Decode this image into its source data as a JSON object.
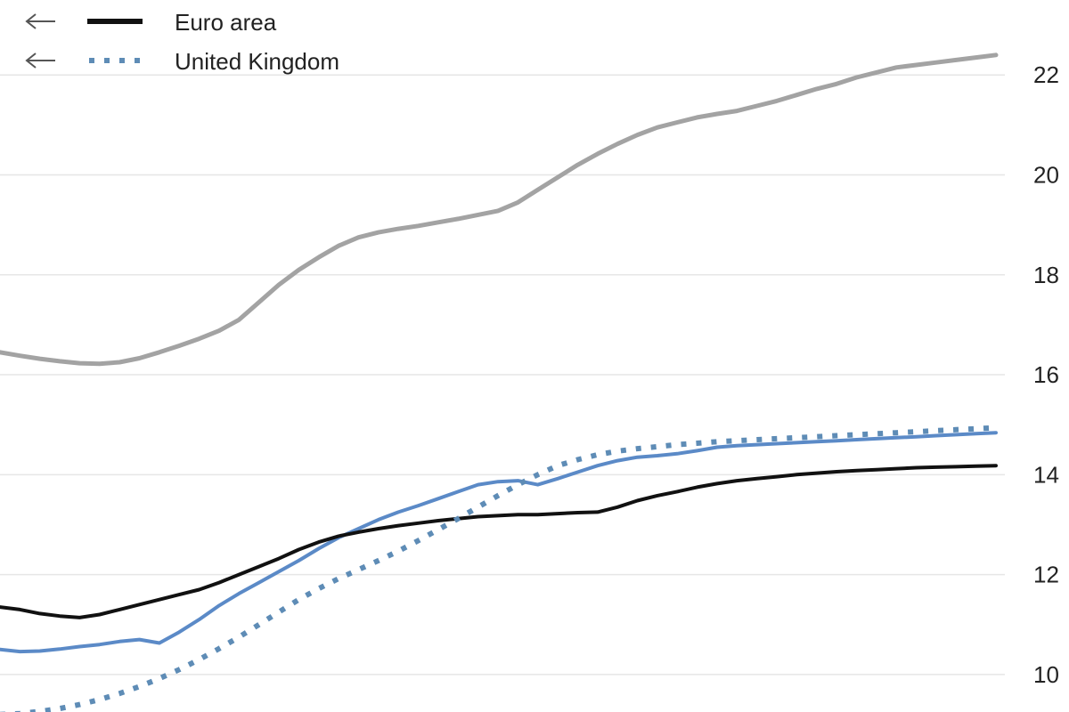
{
  "chart_data": {
    "type": "line",
    "right_axis": {
      "ylim": [
        9.25,
        23.5
      ],
      "ticks": [
        10,
        12,
        14,
        16,
        18,
        20,
        22
      ],
      "tick_labels": [
        "10",
        "12",
        "14",
        "16",
        "18",
        "20",
        "22"
      ]
    },
    "grid": true,
    "legend": {
      "placement": "top-left",
      "entries": [
        {
          "label": "Euro area",
          "series": "euro_area",
          "arrow": "left"
        },
        {
          "label": "United Kingdom",
          "series": "united_kingdom",
          "arrow": "left"
        }
      ]
    },
    "x": [
      0,
      1,
      2,
      3,
      4,
      5,
      6,
      7,
      8,
      9,
      10,
      11,
      12,
      13,
      14,
      15,
      16,
      17,
      18,
      19,
      20,
      21,
      22,
      23,
      24,
      25,
      26,
      27,
      28,
      29,
      30,
      31,
      32,
      33,
      34,
      35,
      36,
      37,
      38,
      39,
      40,
      41,
      42,
      43,
      44,
      45,
      46,
      47,
      48,
      49,
      50
    ],
    "series": [
      {
        "key": "top_gray",
        "color": "#a3a3a3",
        "style": "solid",
        "width": 5,
        "values": [
          16.45,
          16.38,
          16.32,
          16.27,
          16.23,
          16.22,
          16.25,
          16.33,
          16.45,
          16.58,
          16.72,
          16.88,
          17.1,
          17.45,
          17.8,
          18.1,
          18.35,
          18.58,
          18.75,
          18.85,
          18.92,
          18.98,
          19.05,
          19.12,
          19.2,
          19.28,
          19.45,
          19.7,
          19.95,
          20.2,
          20.42,
          20.62,
          20.8,
          20.95,
          21.05,
          21.15,
          21.22,
          21.28,
          21.38,
          21.48,
          21.6,
          21.72,
          21.82,
          21.95,
          22.05,
          22.15,
          22.2,
          22.25,
          22.3,
          22.35,
          22.4
        ]
      },
      {
        "key": "blue_solid",
        "color": "#5b8ac7",
        "style": "solid",
        "width": 4,
        "values": [
          10.5,
          10.46,
          10.47,
          10.51,
          10.56,
          10.6,
          10.66,
          10.7,
          10.63,
          10.85,
          11.1,
          11.38,
          11.62,
          11.84,
          12.06,
          12.28,
          12.52,
          12.74,
          12.92,
          13.1,
          13.25,
          13.38,
          13.52,
          13.66,
          13.8,
          13.86,
          13.88,
          13.8,
          13.92,
          14.05,
          14.18,
          14.28,
          14.35,
          14.38,
          14.42,
          14.48,
          14.55,
          14.58,
          14.6,
          14.62,
          14.64,
          14.66,
          14.68,
          14.7,
          14.72,
          14.74,
          14.76,
          14.78,
          14.8,
          14.82,
          14.84
        ]
      },
      {
        "key": "euro_area",
        "color": "#111111",
        "style": "solid",
        "width": 4,
        "values": [
          11.35,
          11.3,
          11.22,
          11.17,
          11.14,
          11.2,
          11.3,
          11.4,
          11.5,
          11.6,
          11.7,
          11.84,
          12.0,
          12.16,
          12.32,
          12.5,
          12.65,
          12.77,
          12.85,
          12.92,
          12.98,
          13.03,
          13.08,
          13.12,
          13.16,
          13.18,
          13.2,
          13.2,
          13.22,
          13.24,
          13.25,
          13.35,
          13.48,
          13.58,
          13.66,
          13.75,
          13.82,
          13.88,
          13.92,
          13.96,
          14.0,
          14.03,
          14.06,
          14.08,
          14.1,
          14.12,
          14.14,
          14.15,
          14.16,
          14.17,
          14.18
        ]
      },
      {
        "key": "united_kingdom",
        "color": "#5e8cb6",
        "style": "dotted",
        "width": 6,
        "values": [
          9.2,
          9.22,
          9.26,
          9.32,
          9.4,
          9.5,
          9.62,
          9.76,
          9.92,
          10.1,
          10.3,
          10.52,
          10.75,
          11.0,
          11.25,
          11.5,
          11.72,
          11.92,
          12.1,
          12.28,
          12.47,
          12.68,
          12.9,
          13.12,
          13.35,
          13.58,
          13.8,
          14.0,
          14.18,
          14.3,
          14.4,
          14.47,
          14.52,
          14.56,
          14.6,
          14.63,
          14.66,
          14.68,
          14.7,
          14.72,
          14.74,
          14.76,
          14.78,
          14.8,
          14.82,
          14.84,
          14.86,
          14.88,
          14.9,
          14.92,
          14.94
        ]
      }
    ]
  }
}
